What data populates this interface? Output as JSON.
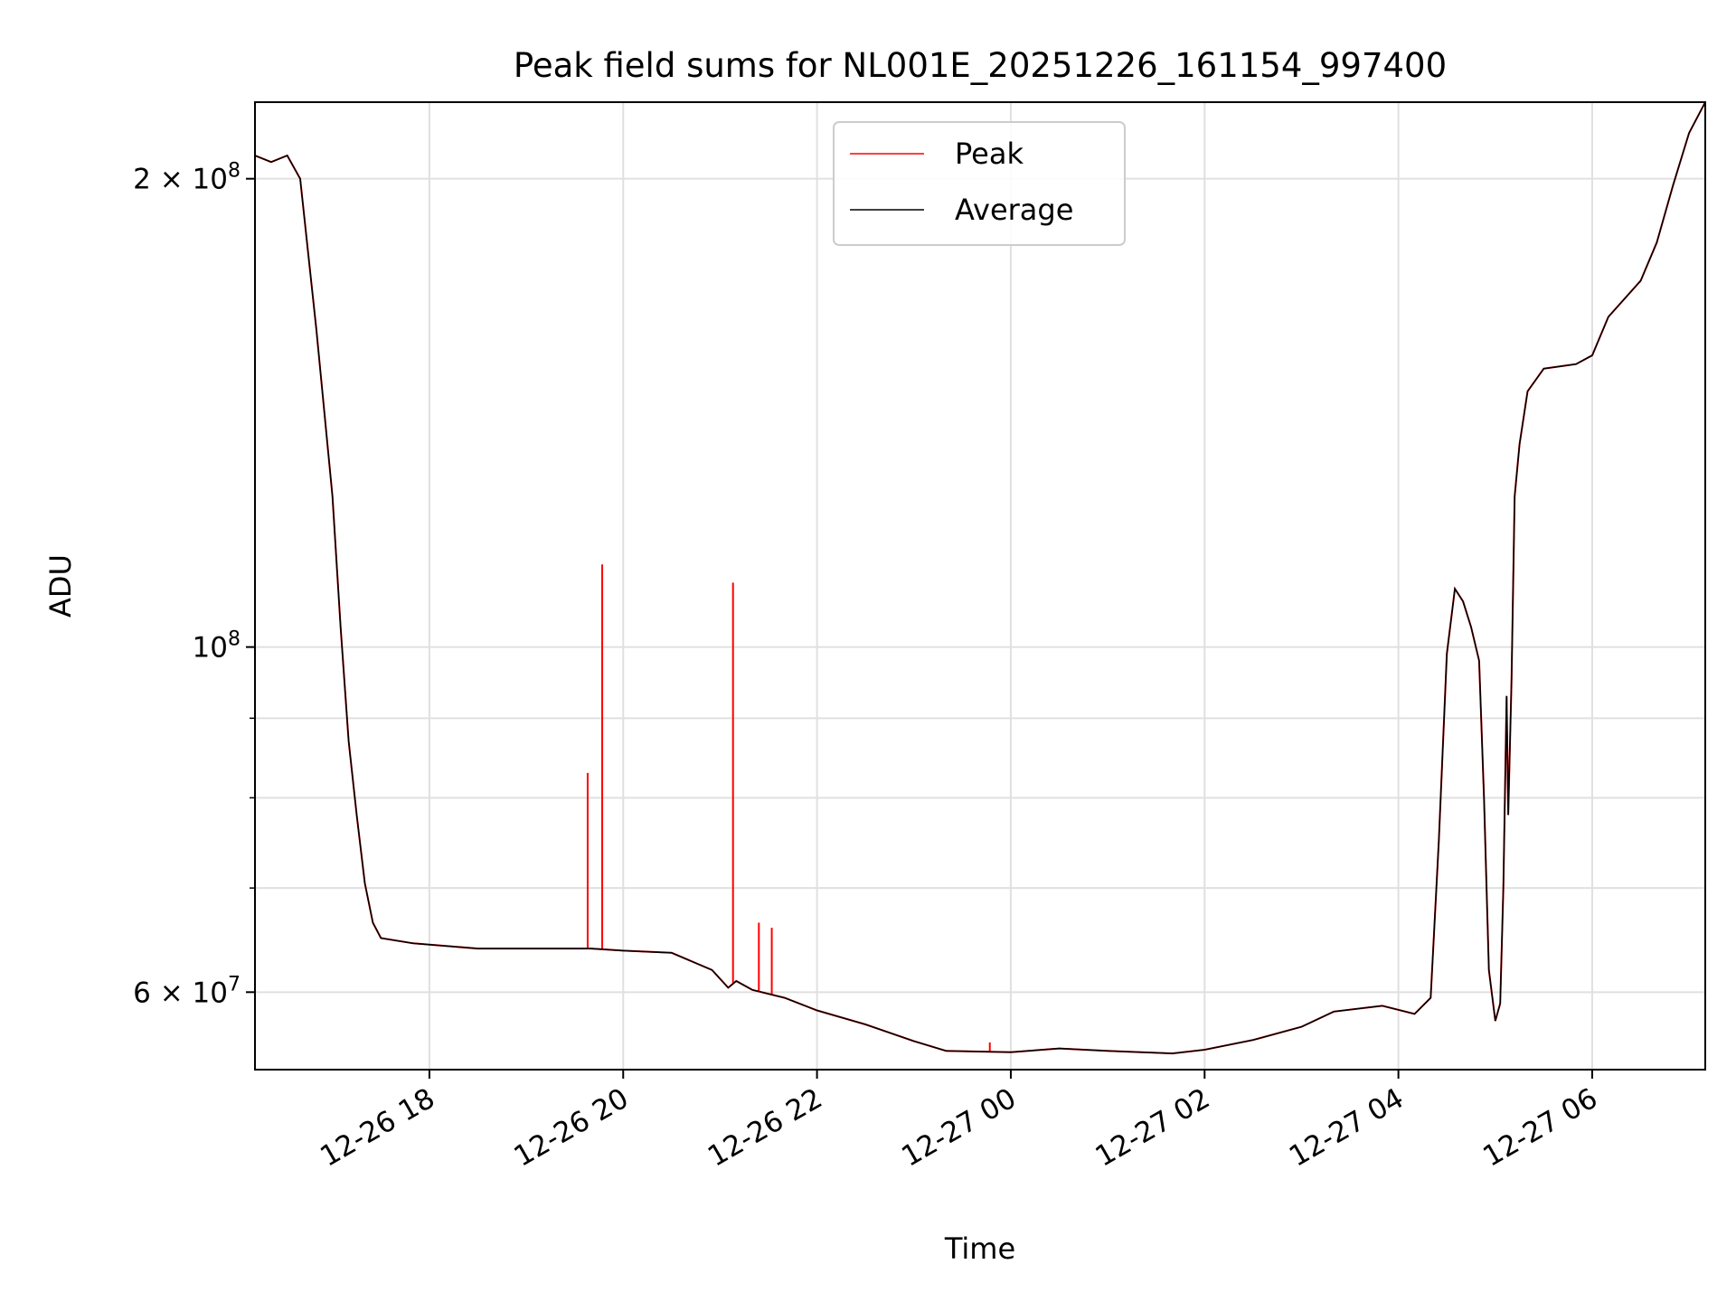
{
  "chart_data": {
    "type": "line",
    "title": "Peak field sums for NL001E_20251226_161154_997400",
    "xlabel": "Time",
    "ylabel": "ADU",
    "yscale": "log",
    "grid": true,
    "legend_position": "upper center",
    "xlim": [
      "2025-12-26 16:12",
      "2025-12-27 07:10"
    ],
    "ylim": [
      53500000,
      224000000
    ],
    "x_ticks": [
      {
        "t": "2025-12-26 18:00",
        "label": "12-26 18"
      },
      {
        "t": "2025-12-26 20:00",
        "label": "12-26 20"
      },
      {
        "t": "2025-12-26 22:00",
        "label": "12-26 22"
      },
      {
        "t": "2025-12-27 00:00",
        "label": "12-27 00"
      },
      {
        "t": "2025-12-27 02:00",
        "label": "12-27 02"
      },
      {
        "t": "2025-12-27 04:00",
        "label": "12-27 04"
      },
      {
        "t": "2025-12-27 06:00",
        "label": "12-27 06"
      }
    ],
    "y_major_ticks": [
      {
        "value": 60000000,
        "mant": "6",
        "exp": "7"
      },
      {
        "value": 100000000,
        "mant": "",
        "exp": "8"
      },
      {
        "value": 200000000,
        "mant": "2",
        "exp": "8"
      }
    ],
    "y_minor_ticks": [
      70000000,
      80000000,
      90000000
    ],
    "series": [
      {
        "name": "Average",
        "color": "#000000",
        "points": [
          [
            "2025-12-26 16:12",
            207000000
          ],
          [
            "2025-12-26 16:22",
            205000000
          ],
          [
            "2025-12-26 16:32",
            207000000
          ],
          [
            "2025-12-26 16:40",
            200000000
          ],
          [
            "2025-12-26 16:50",
            160000000
          ],
          [
            "2025-12-26 17:00",
            125000000
          ],
          [
            "2025-12-26 17:05",
            103000000
          ],
          [
            "2025-12-26 17:10",
            87000000
          ],
          [
            "2025-12-26 17:15",
            78000000
          ],
          [
            "2025-12-26 17:20",
            70500000
          ],
          [
            "2025-12-26 17:25",
            66500000
          ],
          [
            "2025-12-26 17:30",
            65000000
          ],
          [
            "2025-12-26 17:50",
            64500000
          ],
          [
            "2025-12-26 18:30",
            64000000
          ],
          [
            "2025-12-26 19:00",
            64000000
          ],
          [
            "2025-12-26 19:40",
            64000000
          ],
          [
            "2025-12-26 20:00",
            63800000
          ],
          [
            "2025-12-26 20:30",
            63600000
          ],
          [
            "2025-12-26 20:55",
            62000000
          ],
          [
            "2025-12-26 21:05",
            60400000
          ],
          [
            "2025-12-26 21:10",
            61000000
          ],
          [
            "2025-12-26 21:20",
            60200000
          ],
          [
            "2025-12-26 21:40",
            59500000
          ],
          [
            "2025-12-26 22:00",
            58400000
          ],
          [
            "2025-12-26 22:30",
            57200000
          ],
          [
            "2025-12-26 23:00",
            55800000
          ],
          [
            "2025-12-26 23:20",
            55000000
          ],
          [
            "2025-12-27 00:00",
            54900000
          ],
          [
            "2025-12-27 00:30",
            55200000
          ],
          [
            "2025-12-27 01:00",
            55000000
          ],
          [
            "2025-12-27 01:40",
            54800000
          ],
          [
            "2025-12-27 02:00",
            55100000
          ],
          [
            "2025-12-27 02:30",
            55900000
          ],
          [
            "2025-12-27 03:00",
            57000000
          ],
          [
            "2025-12-27 03:20",
            58300000
          ],
          [
            "2025-12-27 03:50",
            58800000
          ],
          [
            "2025-12-27 04:10",
            58100000
          ],
          [
            "2025-12-27 04:20",
            59500000
          ],
          [
            "2025-12-27 04:25",
            75000000
          ],
          [
            "2025-12-27 04:30",
            99000000
          ],
          [
            "2025-12-27 04:35",
            109000000
          ],
          [
            "2025-12-27 04:40",
            107000000
          ],
          [
            "2025-12-27 04:45",
            103000000
          ],
          [
            "2025-12-27 04:50",
            98000000
          ],
          [
            "2025-12-27 04:53",
            80000000
          ],
          [
            "2025-12-27 04:56",
            62000000
          ],
          [
            "2025-12-27 05:00",
            57500000
          ],
          [
            "2025-12-27 05:03",
            59000000
          ],
          [
            "2025-12-27 05:05",
            70000000
          ],
          [
            "2025-12-27 05:07",
            93000000
          ],
          [
            "2025-12-27 05:08",
            78000000
          ],
          [
            "2025-12-27 05:10",
            95000000
          ],
          [
            "2025-12-27 05:12",
            125000000
          ],
          [
            "2025-12-27 05:15",
            135000000
          ],
          [
            "2025-12-27 05:20",
            146000000
          ],
          [
            "2025-12-27 05:30",
            151000000
          ],
          [
            "2025-12-27 05:50",
            152000000
          ],
          [
            "2025-12-27 06:00",
            154000000
          ],
          [
            "2025-12-27 06:10",
            163000000
          ],
          [
            "2025-12-27 06:30",
            172000000
          ],
          [
            "2025-12-27 06:40",
            182000000
          ],
          [
            "2025-12-27 06:50",
            198000000
          ],
          [
            "2025-12-27 07:00",
            214000000
          ],
          [
            "2025-12-27 07:10",
            224000000
          ]
        ]
      },
      {
        "name": "Peak",
        "color": "#ff0000",
        "spikes": [
          [
            "2025-12-26 19:38",
            83000000
          ],
          [
            "2025-12-26 19:47",
            113000000
          ],
          [
            "2025-12-26 21:08",
            110000000
          ],
          [
            "2025-12-26 21:24",
            66500000
          ],
          [
            "2025-12-26 21:32",
            66000000
          ],
          [
            "2025-12-26 23:47",
            55700000
          ]
        ]
      }
    ]
  }
}
